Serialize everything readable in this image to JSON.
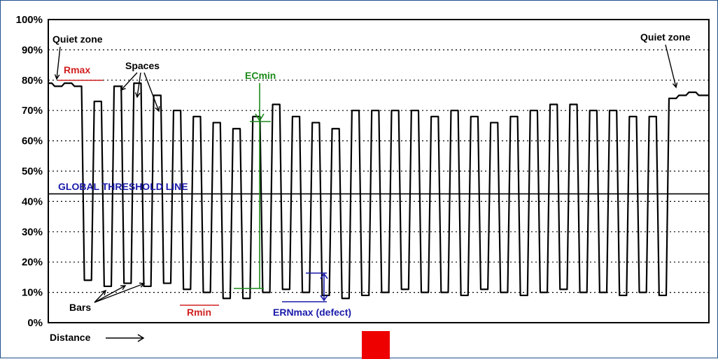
{
  "chart_data": {
    "type": "line",
    "title": "",
    "xlabel": "Distance",
    "ylabel": "",
    "ylim": [
      0,
      100
    ],
    "yticks": [
      "0%",
      "10%",
      "20%",
      "30%",
      "40%",
      "50%",
      "60%",
      "70%",
      "80%",
      "90%",
      "100%"
    ],
    "grid": "horizontal dotted",
    "threshold": {
      "value": 42.5,
      "label": "GLOBAL THRESHOLD LINE"
    },
    "series": [
      {
        "x": [
          0,
          1.5,
          3,
          4.5,
          6,
          7.5,
          9,
          10.5,
          12,
          13.5,
          15,
          16.5,
          18,
          19.5,
          21,
          22.5,
          24,
          25.5,
          27,
          28.5,
          30,
          31.5,
          33,
          34.5,
          36,
          37.5,
          39,
          40.5,
          42,
          43.5,
          45,
          46.5,
          48,
          49.5,
          51,
          52.5,
          54,
          55.5,
          57,
          58.5,
          60,
          61.5,
          63,
          64.5,
          66,
          67.5,
          69,
          70.5,
          72,
          73.5,
          75,
          76.5,
          78,
          79.5,
          81,
          82.5,
          84,
          85.5,
          87,
          88.5,
          90,
          91.5,
          93,
          94.5,
          96,
          97.5,
          99,
          100
        ],
        "values": [
          79,
          78,
          79,
          78,
          14,
          73,
          12,
          78,
          13,
          79,
          12,
          75,
          13,
          70,
          11,
          68,
          10,
          66,
          8,
          64,
          8,
          68,
          10,
          72,
          11,
          68,
          10,
          66,
          9,
          64,
          8,
          70,
          9,
          70,
          10,
          70,
          11,
          70,
          10,
          68,
          10,
          70,
          9,
          68,
          11,
          66,
          10,
          68,
          9,
          70,
          10,
          72,
          11,
          72,
          10,
          70,
          10,
          70,
          9,
          68,
          10,
          68,
          9,
          74,
          75,
          76,
          75,
          75
        ]
      }
    ],
    "annotations": [
      {
        "label": "Quiet zone",
        "x": 2,
        "y": 80
      },
      {
        "label": "Quiet zone",
        "x": 98,
        "y": 76
      },
      {
        "label": "Rmax",
        "x": 5,
        "y": 80
      },
      {
        "label": "Spaces",
        "x": 15,
        "y": 77
      },
      {
        "label": "ECmin",
        "x": 32,
        "y": 67
      },
      {
        "label": "Bars",
        "x": 8,
        "y": 10
      },
      {
        "label": "Rmin",
        "x": 23,
        "y": 6
      },
      {
        "label": "ERNmax (defect)",
        "x": 42,
        "y": 16
      }
    ]
  },
  "colors": {
    "rmax": "#d02020",
    "rmin": "#d02020",
    "ecmin": "#1a8a1a",
    "threshold_label": "#1a1aaa",
    "ern": "#1a1aaa",
    "marker": "#ee0000"
  }
}
